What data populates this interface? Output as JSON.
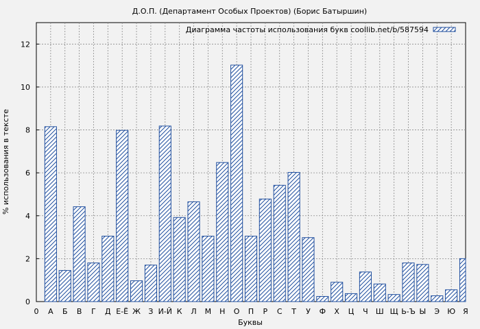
{
  "chart_data": {
    "type": "bar",
    "title": "Д.О.П. (Департамент Особых Проектов) (Борис Батыршин)",
    "xlabel": "Буквы",
    "ylabel": "% использования в тексте",
    "ylim": [
      0,
      13
    ],
    "yticks": [
      0,
      2,
      4,
      6,
      8,
      10,
      12
    ],
    "grid": true,
    "legend_position": "top-right",
    "categories": [
      "0",
      "А",
      "Б",
      "В",
      "Г",
      "Д",
      "Е-Ё",
      "Ж",
      "З",
      "И-Й",
      "К",
      "Л",
      "М",
      "Н",
      "О",
      "П",
      "Р",
      "С",
      "Т",
      "У",
      "Ф",
      "Х",
      "Ц",
      "Ч",
      "Ш",
      "Щ",
      "Ь-Ъ",
      "Ы",
      "Э",
      "Ю",
      "Я"
    ],
    "series": [
      {
        "name": "Диаграмма частоты использования букв coollib.net/b/587594",
        "color": "#1f4e9e",
        "values": [
          null,
          8.15,
          1.45,
          4.42,
          1.8,
          3.05,
          7.98,
          0.97,
          1.7,
          8.18,
          3.92,
          4.65,
          3.05,
          6.48,
          11.02,
          3.05,
          4.78,
          5.42,
          6.02,
          2.98,
          0.24,
          0.9,
          0.37,
          1.38,
          0.82,
          0.33,
          1.8,
          1.73,
          0.27,
          0.55,
          2.0
        ]
      }
    ]
  }
}
